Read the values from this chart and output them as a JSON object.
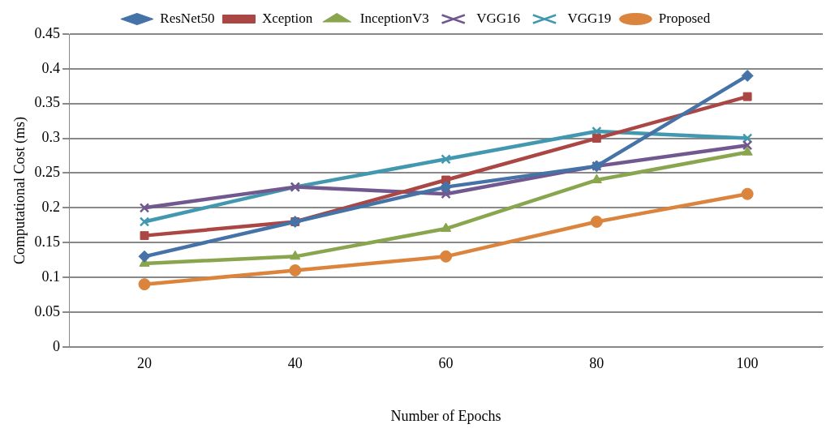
{
  "chart_data": {
    "type": "line",
    "xlabel": "Number of Epochs",
    "ylabel": "Computational Cost (ms)",
    "categories": [
      "20",
      "40",
      "60",
      "80",
      "100"
    ],
    "ylim": [
      0,
      0.45
    ],
    "yticks": [
      0,
      0.05,
      0.1,
      0.15,
      0.2,
      0.25,
      0.3,
      0.35,
      0.4,
      0.45
    ],
    "grid": "y",
    "legend": "top",
    "series": [
      {
        "name": "ResNet50",
        "color": "#4572a7",
        "marker": "diamond",
        "values": [
          0.13,
          0.18,
          0.23,
          0.26,
          0.39
        ]
      },
      {
        "name": "Xception",
        "color": "#aa4643",
        "marker": "square",
        "values": [
          0.16,
          0.18,
          0.24,
          0.3,
          0.36
        ]
      },
      {
        "name": "InceptionV3",
        "color": "#89a54e",
        "marker": "triangle",
        "values": [
          0.12,
          0.13,
          0.17,
          0.24,
          0.28
        ]
      },
      {
        "name": "VGG16",
        "color": "#71588f",
        "marker": "cross",
        "values": [
          0.2,
          0.23,
          0.22,
          0.26,
          0.29
        ]
      },
      {
        "name": "VGG19",
        "color": "#4198af",
        "marker": "cross",
        "values": [
          0.18,
          0.23,
          0.27,
          0.31,
          0.3
        ]
      },
      {
        "name": "Proposed",
        "color": "#db843d",
        "marker": "circle",
        "values": [
          0.09,
          0.11,
          0.13,
          0.18,
          0.22
        ]
      }
    ]
  }
}
